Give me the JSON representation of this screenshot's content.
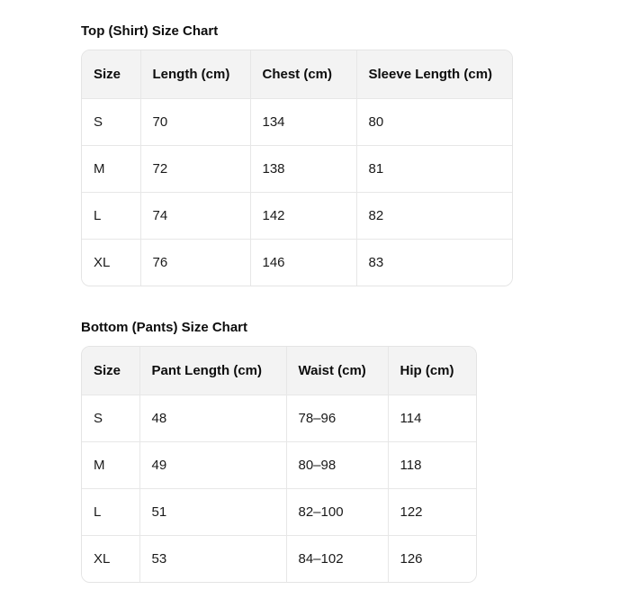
{
  "colors": {
    "page_background": "#ffffff",
    "header_background": "#f3f3f3",
    "table_border": "#e4e4e4",
    "text": "#0d0d0d"
  },
  "sections": [
    {
      "title": "Top (Shirt) Size Chart",
      "columns": [
        "Size",
        "Length (cm)",
        "Chest (cm)",
        "Sleeve Length (cm)"
      ],
      "rows": [
        [
          "S",
          "70",
          "134",
          "80"
        ],
        [
          "M",
          "72",
          "138",
          "81"
        ],
        [
          "L",
          "74",
          "142",
          "82"
        ],
        [
          "XL",
          "76",
          "146",
          "83"
        ]
      ]
    },
    {
      "title": "Bottom (Pants) Size Chart",
      "columns": [
        "Size",
        "Pant Length (cm)",
        "Waist (cm)",
        "Hip (cm)"
      ],
      "rows": [
        [
          "S",
          "48",
          "78–96",
          "114"
        ],
        [
          "M",
          "49",
          "80–98",
          "118"
        ],
        [
          "L",
          "51",
          "82–100",
          "122"
        ],
        [
          "XL",
          "53",
          "84–102",
          "126"
        ]
      ]
    }
  ],
  "chart_data": [
    {
      "type": "table",
      "title": "Top (Shirt) Size Chart",
      "columns": [
        "Size",
        "Length (cm)",
        "Chest (cm)",
        "Sleeve Length (cm)"
      ],
      "rows": [
        [
          "S",
          70,
          134,
          80
        ],
        [
          "M",
          72,
          138,
          81
        ],
        [
          "L",
          74,
          142,
          82
        ],
        [
          "XL",
          76,
          146,
          83
        ]
      ]
    },
    {
      "type": "table",
      "title": "Bottom (Pants) Size Chart",
      "columns": [
        "Size",
        "Pant Length (cm)",
        "Waist (cm)",
        "Hip (cm)"
      ],
      "rows": [
        [
          "S",
          48,
          "78–96",
          114
        ],
        [
          "M",
          49,
          "80–98",
          118
        ],
        [
          "L",
          51,
          "82–100",
          122
        ],
        [
          "XL",
          53,
          "84–102",
          126
        ]
      ]
    }
  ]
}
